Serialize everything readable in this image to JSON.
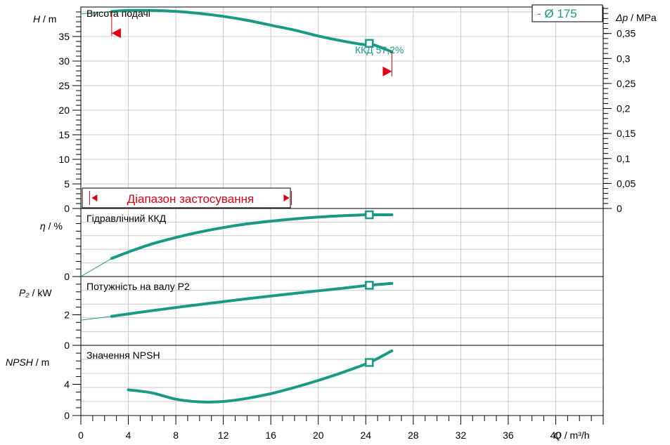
{
  "colors": {
    "curve": "#1a9a86",
    "range": "#e0000f",
    "grid": "#c8c8c8"
  },
  "chart_data": {
    "type": "line",
    "x": {
      "label_var": "Q",
      "label_unit": "m³/h",
      "lim": [
        0,
        44
      ],
      "ticks": [
        0,
        4,
        8,
        12,
        16,
        20,
        24,
        28,
        32,
        36,
        40
      ]
    },
    "diameter_label": "-    Ø 175",
    "operating_point_q": 24.3,
    "panels": [
      {
        "id": "head",
        "title": "Висота подачі",
        "ylabel_var": "H",
        "ylabel_unit": "m",
        "ylim": [
          0,
          41
        ],
        "yticks": [
          0,
          5,
          10,
          15,
          20,
          25,
          30,
          35
        ],
        "right_axis": {
          "label_var": "Δp",
          "label_unit": "MPa",
          "ticks": [
            0,
            0.05,
            0.1,
            0.15,
            0.2,
            0.25,
            0.3,
            0.35
          ],
          "tick_labels": [
            "0",
            "0,05",
            "0,1",
            "0,15",
            "0,2",
            "0,25",
            "0,3",
            "0,35"
          ]
        },
        "series": [
          {
            "x": [
              2.6,
              4,
              6,
              8,
              10,
              12,
              14,
              16,
              18,
              20,
              22,
              24,
              24.3,
              26.2
            ],
            "y": [
              40.1,
              40.3,
              40.3,
              40.1,
              39.7,
              39.1,
              38.3,
              37.3,
              36.3,
              35.1,
              34.1,
              33.3,
              33.6,
              31.9
            ]
          }
        ],
        "extrapolation": {
          "x": [
            0,
            2.6
          ],
          "y": [
            39.6,
            40.1
          ]
        },
        "point_label": "ККД  57,2%",
        "range_label": "Діапазон застосування",
        "range_q": [
          0.5,
          17.5
        ]
      },
      {
        "id": "efficiency",
        "title": "Гідравлічний ККД",
        "ylabel_var": "η",
        "ylabel_unit": "%",
        "ylim": [
          0,
          75
        ],
        "yticks": [
          0
        ],
        "series": [
          {
            "x": [
              2.6,
              4,
              6,
              8,
              10,
              12,
              14,
              16,
              18,
              20,
              22,
              24.3,
              26.2
            ],
            "y": [
              20,
              27,
              36,
              43,
              49,
              54,
              58,
              61,
              63.5,
              65.5,
              67,
              68,
              68
            ]
          }
        ],
        "extrapolation": {
          "x": [
            0,
            2.6
          ],
          "y": [
            0,
            20
          ]
        }
      },
      {
        "id": "power",
        "title": "Потужність на валу P2",
        "ylabel_var": "P₂",
        "ylabel_unit": "kW",
        "ylim": [
          0,
          4.5
        ],
        "yticks": [
          0,
          2
        ],
        "series": [
          {
            "x": [
              2.6,
              6,
              10,
              14,
              18,
              22,
              24.3,
              26.2
            ],
            "y": [
              1.9,
              2.27,
              2.67,
              3.05,
              3.4,
              3.73,
              3.93,
              4.05
            ]
          }
        ],
        "extrapolation": {
          "x": [
            0,
            2.6
          ],
          "y": [
            1.65,
            1.9
          ]
        }
      },
      {
        "id": "npsh",
        "title": "Значення NPSH",
        "ylabel_var": "NPSH",
        "ylabel_unit": "m",
        "ylim": [
          0,
          9
        ],
        "yticks": [
          0,
          4
        ],
        "series": [
          {
            "x": [
              4,
              6,
              8,
              10,
              12,
              14,
              16,
              18,
              20,
              22,
              24.3,
              26.2
            ],
            "y": [
              3.3,
              2.9,
              2.1,
              1.75,
              1.8,
              2.2,
              2.8,
              3.6,
              4.5,
              5.5,
              6.8,
              8.3
            ]
          }
        ]
      }
    ]
  }
}
